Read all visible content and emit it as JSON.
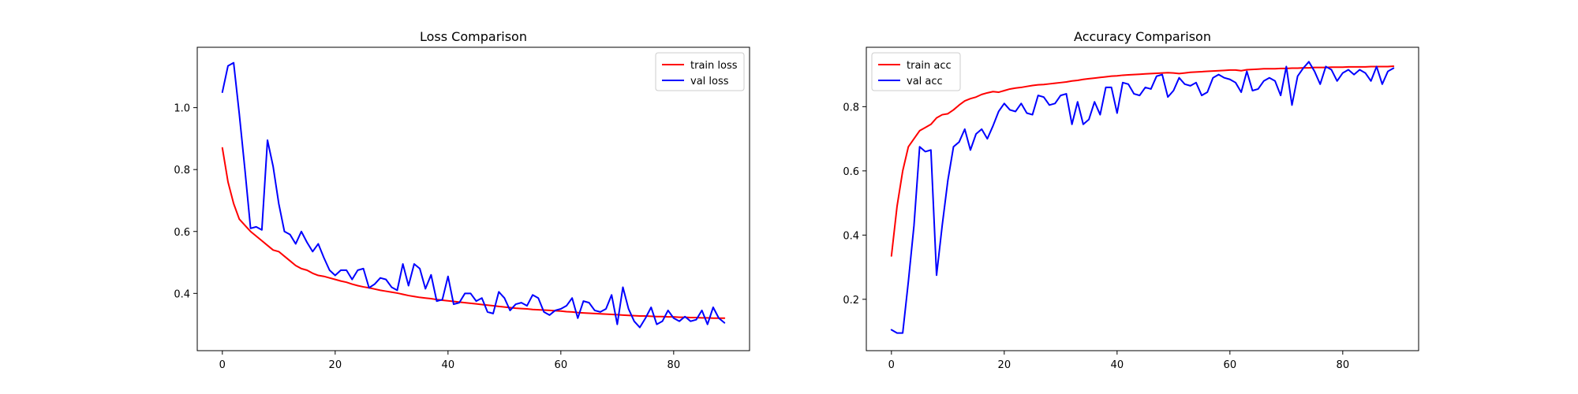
{
  "colors": {
    "train": "#ff0000",
    "val": "#0000ff"
  },
  "chart_data": [
    {
      "type": "line",
      "title": "Loss Comparison",
      "xlabel": "",
      "ylabel": "",
      "xlim": [
        -4.45,
        93.45
      ],
      "ylim": [
        0.215,
        1.195
      ],
      "xticks": [
        0,
        20,
        40,
        60,
        80
      ],
      "yticks": [
        0.4,
        0.6,
        0.8,
        1.0
      ],
      "xtick_labels": [
        "0",
        "20",
        "40",
        "60",
        "80"
      ],
      "ytick_labels": [
        "0.4",
        "0.6",
        "0.8",
        "1.0"
      ],
      "grid": false,
      "legend_position": "top-right",
      "series": [
        {
          "name": "train loss",
          "color": "#ff0000",
          "values": [
            0.87,
            0.76,
            0.69,
            0.64,
            0.62,
            0.6,
            0.585,
            0.57,
            0.555,
            0.54,
            0.535,
            0.52,
            0.505,
            0.49,
            0.48,
            0.475,
            0.465,
            0.458,
            0.455,
            0.45,
            0.445,
            0.44,
            0.436,
            0.43,
            0.425,
            0.421,
            0.418,
            0.414,
            0.41,
            0.407,
            0.404,
            0.401,
            0.397,
            0.393,
            0.39,
            0.387,
            0.385,
            0.383,
            0.38,
            0.378,
            0.376,
            0.374,
            0.372,
            0.37,
            0.368,
            0.366,
            0.364,
            0.362,
            0.36,
            0.358,
            0.356,
            0.354,
            0.352,
            0.351,
            0.35,
            0.348,
            0.347,
            0.346,
            0.345,
            0.344,
            0.343,
            0.341,
            0.34,
            0.338,
            0.337,
            0.336,
            0.335,
            0.334,
            0.333,
            0.332,
            0.331,
            0.33,
            0.329,
            0.328,
            0.327,
            0.327,
            0.326,
            0.325,
            0.325,
            0.324,
            0.324,
            0.323,
            0.323,
            0.322,
            0.322,
            0.321,
            0.321,
            0.32,
            0.32,
            0.32
          ]
        },
        {
          "name": "val loss",
          "color": "#0000ff",
          "values": [
            1.05,
            1.135,
            1.145,
            0.98,
            0.8,
            0.61,
            0.615,
            0.605,
            0.895,
            0.81,
            0.69,
            0.6,
            0.59,
            0.56,
            0.6,
            0.565,
            0.535,
            0.56,
            0.515,
            0.475,
            0.458,
            0.475,
            0.475,
            0.445,
            0.475,
            0.48,
            0.418,
            0.43,
            0.45,
            0.445,
            0.42,
            0.41,
            0.495,
            0.425,
            0.495,
            0.48,
            0.415,
            0.46,
            0.375,
            0.38,
            0.455,
            0.365,
            0.37,
            0.4,
            0.4,
            0.375,
            0.385,
            0.34,
            0.335,
            0.405,
            0.385,
            0.345,
            0.365,
            0.37,
            0.36,
            0.395,
            0.385,
            0.34,
            0.33,
            0.345,
            0.35,
            0.36,
            0.385,
            0.32,
            0.375,
            0.37,
            0.345,
            0.34,
            0.35,
            0.395,
            0.3,
            0.42,
            0.35,
            0.31,
            0.29,
            0.32,
            0.355,
            0.3,
            0.31,
            0.345,
            0.32,
            0.31,
            0.325,
            0.31,
            0.315,
            0.345,
            0.3,
            0.355,
            0.32,
            0.305
          ]
        }
      ]
    },
    {
      "type": "line",
      "title": "Accuracy Comparison",
      "xlabel": "",
      "ylabel": "",
      "xlim": [
        -4.45,
        93.45
      ],
      "ylim": [
        0.04,
        0.985
      ],
      "xticks": [
        0,
        20,
        40,
        60,
        80
      ],
      "yticks": [
        0.2,
        0.4,
        0.6,
        0.8
      ],
      "xtick_labels": [
        "0",
        "20",
        "40",
        "60",
        "80"
      ],
      "ytick_labels": [
        "0.2",
        "0.4",
        "0.6",
        "0.8"
      ],
      "grid": false,
      "legend_position": "top-left",
      "series": [
        {
          "name": "train acc",
          "color": "#ff0000",
          "values": [
            0.335,
            0.49,
            0.6,
            0.675,
            0.7,
            0.725,
            0.735,
            0.745,
            0.765,
            0.775,
            0.778,
            0.79,
            0.805,
            0.818,
            0.825,
            0.83,
            0.838,
            0.843,
            0.847,
            0.845,
            0.85,
            0.855,
            0.858,
            0.86,
            0.863,
            0.866,
            0.868,
            0.869,
            0.871,
            0.873,
            0.875,
            0.877,
            0.88,
            0.882,
            0.885,
            0.887,
            0.889,
            0.891,
            0.893,
            0.895,
            0.896,
            0.898,
            0.899,
            0.9,
            0.901,
            0.902,
            0.903,
            0.904,
            0.905,
            0.906,
            0.905,
            0.903,
            0.905,
            0.907,
            0.908,
            0.909,
            0.91,
            0.911,
            0.912,
            0.913,
            0.914,
            0.914,
            0.912,
            0.915,
            0.916,
            0.917,
            0.918,
            0.918,
            0.918,
            0.919,
            0.919,
            0.92,
            0.92,
            0.921,
            0.921,
            0.922,
            0.922,
            0.922,
            0.923,
            0.923,
            0.923,
            0.924,
            0.924,
            0.924,
            0.924,
            0.925,
            0.925,
            0.925,
            0.925,
            0.926
          ]
        },
        {
          "name": "val acc",
          "color": "#0000ff",
          "values": [
            0.105,
            0.095,
            0.095,
            0.255,
            0.43,
            0.675,
            0.66,
            0.665,
            0.275,
            0.43,
            0.57,
            0.675,
            0.69,
            0.73,
            0.665,
            0.715,
            0.73,
            0.7,
            0.74,
            0.785,
            0.81,
            0.79,
            0.785,
            0.81,
            0.78,
            0.775,
            0.835,
            0.83,
            0.805,
            0.81,
            0.835,
            0.84,
            0.745,
            0.815,
            0.745,
            0.76,
            0.815,
            0.775,
            0.86,
            0.86,
            0.78,
            0.875,
            0.87,
            0.84,
            0.835,
            0.86,
            0.855,
            0.895,
            0.9,
            0.83,
            0.85,
            0.89,
            0.87,
            0.865,
            0.875,
            0.835,
            0.845,
            0.89,
            0.9,
            0.89,
            0.885,
            0.875,
            0.845,
            0.91,
            0.85,
            0.855,
            0.88,
            0.89,
            0.88,
            0.835,
            0.925,
            0.805,
            0.895,
            0.92,
            0.94,
            0.91,
            0.87,
            0.925,
            0.915,
            0.88,
            0.905,
            0.915,
            0.9,
            0.915,
            0.905,
            0.88,
            0.925,
            0.87,
            0.91,
            0.92
          ]
        }
      ]
    }
  ]
}
